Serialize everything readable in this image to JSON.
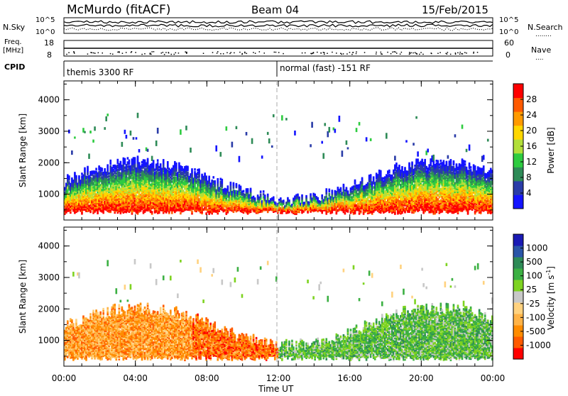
{
  "header": {
    "station": "McMurdo (fitACF)",
    "beam": "Beam 04",
    "date": "15/Feb/2015"
  },
  "params_panel": {
    "nsky_label": "N.Sky",
    "nsearch_label": "N.Search",
    "freq_label_line1": "Freq.",
    "freq_label_line2": "[MHz]",
    "nave_label": "Nave",
    "cpid_label": "CPID",
    "noise_ticks_left": [
      "10^5",
      "10^0"
    ],
    "noise_ticks_right": [
      "10^5",
      "10^0"
    ],
    "freq_ticks": [
      "18",
      "8"
    ],
    "nave_ticks": [
      "60",
      "0"
    ],
    "nsearch_dots": "........",
    "nave_dots": "....",
    "cpid_segments": [
      {
        "text": "themis 3300 RF"
      },
      {
        "text": "normal (fast) -151 RF"
      }
    ]
  },
  "chart_data": [
    {
      "type": "heatmap",
      "title": "",
      "ylabel": "Slant Range [km]",
      "xlabel": "",
      "ylim": [
        180,
        4600
      ],
      "yticks": [
        "1000",
        "2000",
        "3000",
        "4000"
      ],
      "colorbar": {
        "label": "Power [dB]",
        "ticks": [
          "4",
          "8",
          "12",
          "16",
          "20",
          "24",
          "28"
        ],
        "colors": [
          "#1414ff",
          "#2a3ca8",
          "#2e8b57",
          "#2ecc40",
          "#b2df3a",
          "#ffd700",
          "#ff9a00",
          "#ff5a00",
          "#ff0000"
        ]
      },
      "scatter_band_km": [
        2200,
        3600
      ],
      "dense_band_km": [
        400,
        2000
      ]
    },
    {
      "type": "heatmap",
      "title": "",
      "ylabel": "Slant Range [km]",
      "xlabel": "Time UT",
      "ylim": [
        180,
        4600
      ],
      "yticks": [
        "1000",
        "2000",
        "3000",
        "4000"
      ],
      "xticks": [
        "00:00",
        "04:00",
        "08:00",
        "12:00",
        "16:00",
        "20:00",
        "00:00"
      ],
      "colorbar": {
        "label": "Velocity [m s",
        "label_sup": "-1",
        "label_end": "]",
        "ticks": [
          "1000",
          "500",
          "100",
          "25",
          "-25",
          "-100",
          "-500",
          "-1000"
        ],
        "colors": [
          "#1a1ab4",
          "#2a55a8",
          "#2e8b57",
          "#3cb043",
          "#7ed321",
          "#c8c8c8",
          "#ffd27f",
          "#ffb347",
          "#ff8c00",
          "#ff5a00",
          "#ff0000"
        ]
      }
    }
  ],
  "colors": {
    "frame": "#000000",
    "marker_line": "#aaaaaa"
  }
}
